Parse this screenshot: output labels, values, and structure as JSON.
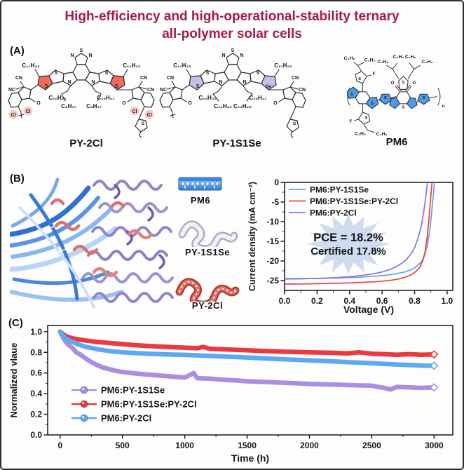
{
  "title": {
    "line1": "High-efficiency and high-operational-stability ternary",
    "line2": "all-polymer solar cells",
    "color": "#a31b4e"
  },
  "panels": {
    "a_label": "(A)",
    "b_label": "(B)",
    "c_label": "(C)"
  },
  "molecules": [
    {
      "name": "PY-2Cl",
      "highlight_color": "#ef6b60",
      "labels": {
        "alkyl_top": "C₁₁H₂₃",
        "chain_inner": "C₁₀H₂₁",
        "chain_outer": "C₈H₁₇",
        "nitrile_cn": "CN",
        "nitrile_nc": "NC",
        "halogen": "Cl",
        "carbonyl": "O",
        "sulfur": "S",
        "nitrogen": "N"
      }
    },
    {
      "name": "PY-1S1Se",
      "highlight_color": "#c7bfe8",
      "labels": {
        "alkyl_top": "C₁₁H₂₃",
        "chain_inner": "C₁₀H₂₁",
        "chain_outer": "C₁₂H₂₅",
        "nitrile_cn": "CN",
        "nitrile_nc": "NC",
        "selenium": "Se",
        "carbonyl": "O",
        "sulfur": "S",
        "nitrogen": "N"
      }
    },
    {
      "name": "PM6",
      "highlight_color": "#4f9be8",
      "labels": {
        "butyl": "C₄H₉",
        "ethyl": "C₂H₅",
        "fluorine": "F",
        "carbonyl": "O",
        "sulfur": "S",
        "repeat": "n"
      }
    }
  ],
  "panelB": {
    "icons": [
      {
        "label": "PM6"
      },
      {
        "label": "PY-1S1Se"
      },
      {
        "label": "PY-2Cl"
      }
    ]
  },
  "chart_data": [
    {
      "id": "jv",
      "type": "line",
      "xlabel": "Voltage (V)",
      "ylabel": "Current density (mA cm⁻²)",
      "xlim": [
        0,
        1.035
      ],
      "ylim": [
        -27.5,
        0
      ],
      "grid": false,
      "legend_position": "top-left-inside",
      "xticks": [
        {
          "v": 0,
          "l": "0.0"
        },
        {
          "v": 0.2,
          "l": "0.2"
        },
        {
          "v": 0.4,
          "l": "0.4"
        },
        {
          "v": 0.6,
          "l": "0.6"
        },
        {
          "v": 0.8,
          "l": "0.8"
        },
        {
          "v": 1.0,
          "l": "1.0"
        }
      ],
      "yticks": [
        {
          "v": 0,
          "l": "0"
        },
        {
          "v": -5,
          "l": "-5"
        },
        {
          "v": -10,
          "l": "-10"
        },
        {
          "v": -15,
          "l": "-15"
        },
        {
          "v": -20,
          "l": "-20"
        },
        {
          "v": -25,
          "l": "-25"
        }
      ],
      "series": [
        {
          "name": "PM6:PY-1S1Se",
          "color": "#6d9ce3",
          "x": [
            0,
            0.05,
            0.1,
            0.15,
            0.2,
            0.25,
            0.3,
            0.35,
            0.4,
            0.45,
            0.5,
            0.55,
            0.6,
            0.65,
            0.7,
            0.74,
            0.78,
            0.81,
            0.84,
            0.86,
            0.88,
            0.895,
            0.905,
            0.915,
            0.925
          ],
          "y": [
            -24.5,
            -24.5,
            -24.48,
            -24.46,
            -24.44,
            -24.4,
            -24.36,
            -24.3,
            -24.24,
            -24.16,
            -24.05,
            -23.9,
            -23.75,
            -23.5,
            -23.15,
            -22.8,
            -22.2,
            -21.5,
            -20.3,
            -18.8,
            -15.8,
            -11.8,
            -7.5,
            -3.2,
            1.0
          ]
        },
        {
          "name": "PM6:PY-1S1Se:PY-2Cl",
          "color": "#e8433c",
          "x": [
            0,
            0.05,
            0.1,
            0.15,
            0.2,
            0.25,
            0.3,
            0.35,
            0.4,
            0.45,
            0.5,
            0.55,
            0.6,
            0.65,
            0.7,
            0.74,
            0.78,
            0.81,
            0.83,
            0.85,
            0.865,
            0.88,
            0.89,
            0.9,
            0.91
          ],
          "y": [
            -25.9,
            -25.88,
            -25.85,
            -25.82,
            -25.78,
            -25.74,
            -25.7,
            -25.64,
            -25.58,
            -25.5,
            -25.4,
            -25.3,
            -25.15,
            -24.95,
            -24.6,
            -24.2,
            -23.5,
            -22.6,
            -21.7,
            -20.0,
            -17.6,
            -13.0,
            -8.5,
            -3.5,
            1.0
          ]
        },
        {
          "name": "PM6:PY-2Cl",
          "color": "#8277dc",
          "x": [
            0,
            0.05,
            0.1,
            0.15,
            0.2,
            0.25,
            0.3,
            0.35,
            0.4,
            0.45,
            0.5,
            0.55,
            0.6,
            0.64,
            0.68,
            0.72,
            0.75,
            0.78,
            0.8,
            0.82,
            0.84,
            0.855,
            0.865,
            0.875,
            0.882
          ],
          "y": [
            -24.6,
            -24.58,
            -24.55,
            -24.5,
            -24.45,
            -24.38,
            -24.28,
            -24.15,
            -24.0,
            -23.8,
            -23.55,
            -23.25,
            -22.8,
            -22.3,
            -21.6,
            -20.6,
            -19.6,
            -18.1,
            -16.6,
            -14.4,
            -11.4,
            -7.8,
            -4.8,
            -1.5,
            1.0
          ]
        }
      ],
      "annotation": {
        "line1": "PCE = 18.2%",
        "line2": "Certified 17.8%",
        "text_color": "#a31b4e",
        "burst_color": "#cfdcf0"
      }
    },
    {
      "id": "stab",
      "type": "line",
      "xlabel": "Time (h)",
      "ylabel": "Normalized vlaue",
      "xlim": [
        -100,
        3150
      ],
      "ylim": [
        0,
        1.06
      ],
      "grid": false,
      "legend_position": "lower-left-inside",
      "xticks": [
        {
          "v": 0,
          "l": "0"
        },
        {
          "v": 500,
          "l": "500"
        },
        {
          "v": 1000,
          "l": "1000"
        },
        {
          "v": 1500,
          "l": "1500"
        },
        {
          "v": 2000,
          "l": "2000"
        },
        {
          "v": 2500,
          "l": "2500"
        },
        {
          "v": 3000,
          "l": "3000"
        }
      ],
      "yticks": [
        {
          "v": 0,
          "l": "0.0"
        },
        {
          "v": 0.2,
          "l": "0.2"
        },
        {
          "v": 0.4,
          "l": "0.4"
        },
        {
          "v": 0.6,
          "l": "0.6"
        },
        {
          "v": 0.8,
          "l": "0.8"
        },
        {
          "v": 1.0,
          "l": "1.0"
        }
      ],
      "series": [
        {
          "name": "PM6:PY-1S1Se",
          "color": "#a88fe0",
          "x": [
            0,
            20,
            40,
            60,
            80,
            100,
            130,
            160,
            200,
            250,
            300,
            350,
            400,
            450,
            500,
            600,
            700,
            800,
            900,
            1000,
            1070,
            1100,
            1200,
            1300,
            1400,
            1500,
            1600,
            1700,
            1800,
            1900,
            2000,
            2100,
            2200,
            2300,
            2400,
            2500,
            2600,
            2650,
            2700,
            2800,
            2900,
            3000
          ],
          "y": [
            1.0,
            0.95,
            0.91,
            0.88,
            0.86,
            0.84,
            0.8,
            0.78,
            0.745,
            0.705,
            0.675,
            0.65,
            0.635,
            0.62,
            0.61,
            0.595,
            0.585,
            0.575,
            0.565,
            0.555,
            0.6,
            0.55,
            0.545,
            0.535,
            0.528,
            0.52,
            0.515,
            0.51,
            0.505,
            0.5,
            0.495,
            0.49,
            0.487,
            0.483,
            0.48,
            0.477,
            0.455,
            0.44,
            0.465,
            0.46,
            0.455,
            0.46
          ]
        },
        {
          "name": "PM6:PY-1S1Se:PY-2Cl",
          "color": "#e83a3f",
          "x": [
            0,
            25,
            50,
            100,
            150,
            200,
            300,
            400,
            500,
            600,
            700,
            800,
            900,
            1000,
            1100,
            1150,
            1200,
            1400,
            1500,
            1600,
            1800,
            2000,
            2200,
            2300,
            2400,
            2500,
            2600,
            2700,
            2800,
            2900,
            3000
          ],
          "y": [
            1.0,
            0.975,
            0.955,
            0.935,
            0.925,
            0.915,
            0.9,
            0.89,
            0.88,
            0.87,
            0.862,
            0.856,
            0.85,
            0.845,
            0.84,
            0.852,
            0.835,
            0.825,
            0.82,
            0.815,
            0.806,
            0.8,
            0.795,
            0.79,
            0.8,
            0.787,
            0.782,
            0.776,
            0.782,
            0.776,
            0.78
          ]
        },
        {
          "name": "PM6:PY-2Cl",
          "color": "#5ea8f2",
          "x": [
            0,
            25,
            50,
            100,
            150,
            200,
            300,
            400,
            500,
            600,
            700,
            800,
            900,
            1000,
            1200,
            1400,
            1500,
            1600,
            1800,
            2000,
            2200,
            2400,
            2500,
            2600,
            2700,
            2800,
            2900,
            3000
          ],
          "y": [
            1.0,
            0.96,
            0.93,
            0.9,
            0.875,
            0.855,
            0.83,
            0.812,
            0.8,
            0.793,
            0.787,
            0.782,
            0.778,
            0.775,
            0.765,
            0.755,
            0.75,
            0.744,
            0.732,
            0.722,
            0.712,
            0.7,
            0.695,
            0.688,
            0.682,
            0.678,
            0.672,
            0.67
          ]
        }
      ]
    }
  ]
}
